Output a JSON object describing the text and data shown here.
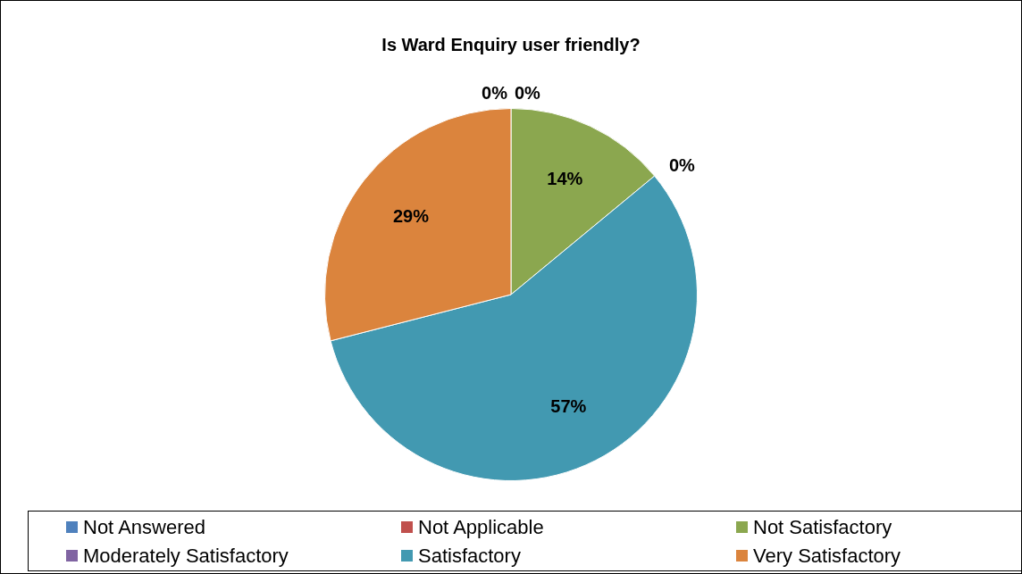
{
  "chart_data": {
    "type": "pie",
    "title": "Is Ward Enquiry user friendly?",
    "categories": [
      "Not Answered",
      "Not Applicable",
      "Not Satisfactory",
      "Moderately Satisfactory",
      "Satisfactory",
      "Very Satisfactory"
    ],
    "values": [
      0,
      0,
      14,
      0,
      57,
      29
    ],
    "value_labels": [
      "0%",
      "0%",
      "14%",
      "0%",
      "57%",
      "29%"
    ],
    "colors": [
      "#4f81bd",
      "#c0504d",
      "#8ba74f",
      "#8064a2",
      "#4299b1",
      "#db843d"
    ],
    "legend": "bottom"
  }
}
